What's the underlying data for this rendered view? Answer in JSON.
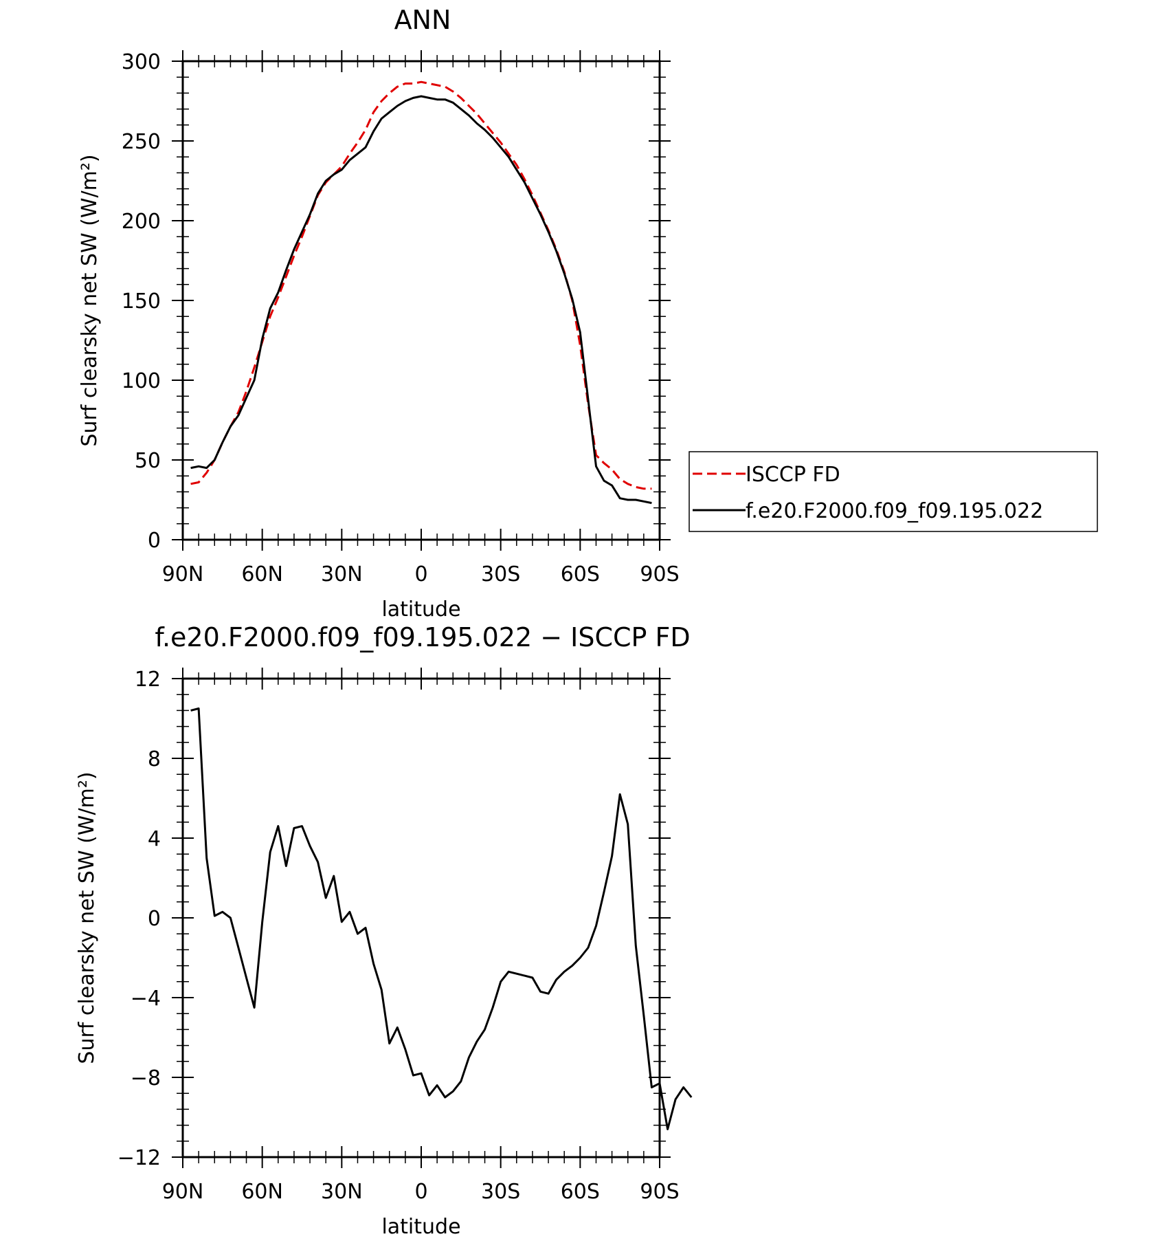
{
  "chart_data": [
    {
      "type": "line",
      "title": "ANN",
      "xlabel": "latitude",
      "ylabel": "Surf clearsky net SW (W/m²)",
      "xlim": [
        90,
        -90
      ],
      "ylim": [
        0,
        300
      ],
      "xticks": [
        {
          "value": 90,
          "label": "90N"
        },
        {
          "value": 60,
          "label": "60N"
        },
        {
          "value": 30,
          "label": "30N"
        },
        {
          "value": 0,
          "label": "0"
        },
        {
          "value": -30,
          "label": "30S"
        },
        {
          "value": -60,
          "label": "60S"
        },
        {
          "value": -90,
          "label": "90S"
        }
      ],
      "yticks": [
        0,
        50,
        100,
        150,
        200,
        250,
        300
      ],
      "legend_position": "right",
      "series": [
        {
          "name": "ISCCP FD",
          "color": "#e00000",
          "dash": true,
          "points": [
            [
              87,
              35
            ],
            [
              84,
              36
            ],
            [
              81,
              42
            ],
            [
              78,
              50
            ],
            [
              75,
              61
            ],
            [
              72,
              71
            ],
            [
              69,
              80
            ],
            [
              66,
              93
            ],
            [
              63,
              108
            ],
            [
              60,
              124
            ],
            [
              57,
              140
            ],
            [
              54,
              152
            ],
            [
              51,
              165
            ],
            [
              48,
              178
            ],
            [
              45,
              190
            ],
            [
              42,
              203
            ],
            [
              39,
              216
            ],
            [
              36,
              224
            ],
            [
              33,
              229
            ],
            [
              30,
              234
            ],
            [
              27,
              242
            ],
            [
              24,
              249
            ],
            [
              21,
              257
            ],
            [
              18,
              268
            ],
            [
              15,
              275
            ],
            [
              12,
              280
            ],
            [
              9,
              284
            ],
            [
              6,
              286
            ],
            [
              3,
              286
            ],
            [
              0,
              287
            ],
            [
              -3,
              286
            ],
            [
              -6,
              285
            ],
            [
              -9,
              284
            ],
            [
              -12,
              281
            ],
            [
              -15,
              277
            ],
            [
              -18,
              272
            ],
            [
              -21,
              267
            ],
            [
              -24,
              261
            ],
            [
              -27,
              255
            ],
            [
              -30,
              249
            ],
            [
              -33,
              242
            ],
            [
              -36,
              235
            ],
            [
              -39,
              226
            ],
            [
              -42,
              216
            ],
            [
              -45,
              205
            ],
            [
              -48,
              194
            ],
            [
              -51,
              182
            ],
            [
              -54,
              168
            ],
            [
              -57,
              150
            ],
            [
              -60,
              122
            ],
            [
              -63,
              85
            ],
            [
              -66,
              53
            ],
            [
              -69,
              48
            ],
            [
              -72,
              44
            ],
            [
              -75,
              38
            ],
            [
              -78,
              35
            ],
            [
              -81,
              33
            ],
            [
              -84,
              32
            ],
            [
              -87,
              32
            ]
          ]
        },
        {
          "name": "f.e20.F2000.f09_f09.195.022",
          "color": "#000000",
          "dash": false,
          "points": [
            [
              87,
              45
            ],
            [
              84,
              46
            ],
            [
              81,
              45
            ],
            [
              78,
              50
            ],
            [
              75,
              61
            ],
            [
              72,
              71
            ],
            [
              69,
              78
            ],
            [
              66,
              89
            ],
            [
              63,
              100
            ],
            [
              60,
              126
            ],
            [
              57,
              145
            ],
            [
              54,
              155
            ],
            [
              51,
              169
            ],
            [
              48,
              182
            ],
            [
              45,
              193
            ],
            [
              42,
              204
            ],
            [
              39,
              217
            ],
            [
              36,
              225
            ],
            [
              33,
              229
            ],
            [
              30,
              232
            ],
            [
              27,
              238
            ],
            [
              24,
              242
            ],
            [
              21,
              246
            ],
            [
              18,
              256
            ],
            [
              15,
              264
            ],
            [
              12,
              268
            ],
            [
              9,
              272
            ],
            [
              6,
              275
            ],
            [
              3,
              277
            ],
            [
              0,
              278
            ],
            [
              -3,
              277
            ],
            [
              -6,
              276
            ],
            [
              -9,
              276
            ],
            [
              -12,
              274
            ],
            [
              -15,
              270
            ],
            [
              -18,
              266
            ],
            [
              -21,
              261
            ],
            [
              -24,
              257
            ],
            [
              -27,
              252
            ],
            [
              -30,
              246
            ],
            [
              -33,
              240
            ],
            [
              -36,
              232
            ],
            [
              -39,
              224
            ],
            [
              -42,
              214
            ],
            [
              -45,
              204
            ],
            [
              -48,
              193
            ],
            [
              -51,
              181
            ],
            [
              -54,
              167
            ],
            [
              -57,
              151
            ],
            [
              -60,
              130
            ],
            [
              -63,
              88
            ],
            [
              -66,
              46
            ],
            [
              -69,
              37
            ],
            [
              -72,
              34
            ],
            [
              -75,
              26
            ],
            [
              -78,
              25
            ],
            [
              -81,
              25
            ],
            [
              -84,
              24
            ],
            [
              -87,
              23
            ]
          ]
        }
      ]
    },
    {
      "type": "line",
      "title": "f.e20.F2000.f09_f09.195.022 − ISCCP FD",
      "xlabel": "latitude",
      "ylabel": "Surf clearsky net SW (W/m²)",
      "xlim": [
        90,
        -90
      ],
      "ylim": [
        -12,
        12
      ],
      "xticks": [
        {
          "value": 90,
          "label": "90N"
        },
        {
          "value": 60,
          "label": "60N"
        },
        {
          "value": 30,
          "label": "30N"
        },
        {
          "value": 0,
          "label": "0"
        },
        {
          "value": -30,
          "label": "30S"
        },
        {
          "value": -60,
          "label": "60S"
        },
        {
          "value": -90,
          "label": "90S"
        }
      ],
      "yticks": [
        {
          "value": -12,
          "label": "−12"
        },
        {
          "value": -8,
          "label": "−8"
        },
        {
          "value": -4,
          "label": "−4"
        },
        {
          "value": 0,
          "label": "0"
        },
        {
          "value": 4,
          "label": "4"
        },
        {
          "value": 8,
          "label": "8"
        },
        {
          "value": 12,
          "label": "12"
        }
      ],
      "series": [
        {
          "color": "#000000",
          "dash": false,
          "points": [
            [
              87,
              10.4
            ],
            [
              84,
              10.5
            ],
            [
              81,
              3.0
            ],
            [
              78,
              0.1
            ],
            [
              75,
              0.3
            ],
            [
              72,
              0.0
            ],
            [
              69,
              -1.5
            ],
            [
              66,
              -3.0
            ],
            [
              63,
              -4.5
            ],
            [
              60,
              -0.2
            ],
            [
              57,
              3.3
            ],
            [
              54,
              4.6
            ],
            [
              51,
              2.6
            ],
            [
              48,
              4.5
            ],
            [
              45,
              4.6
            ],
            [
              42,
              3.6
            ],
            [
              39,
              2.8
            ],
            [
              36,
              1.0
            ],
            [
              33,
              2.1
            ],
            [
              30,
              -0.2
            ],
            [
              27,
              0.3
            ],
            [
              24,
              -0.8
            ],
            [
              21,
              -0.5
            ],
            [
              18,
              -2.3
            ],
            [
              15,
              -3.6
            ],
            [
              12,
              -6.3
            ],
            [
              9,
              -5.5
            ],
            [
              6,
              -6.6
            ],
            [
              3,
              -7.9
            ],
            [
              0,
              -7.8
            ],
            [
              -3,
              -8.9
            ],
            [
              -6,
              -8.4
            ],
            [
              -9,
              -9.0
            ],
            [
              -12,
              -8.7
            ],
            [
              -15,
              -8.2
            ],
            [
              -18,
              -7.0
            ],
            [
              -21,
              -6.2
            ],
            [
              -24,
              -5.6
            ],
            [
              -27,
              -4.5
            ],
            [
              -30,
              -3.2
            ],
            [
              -33,
              -2.7
            ],
            [
              -36,
              -2.8
            ],
            [
              -39,
              -2.9
            ],
            [
              -42,
              -3.0
            ],
            [
              -45,
              -3.7
            ],
            [
              -48,
              -3.8
            ],
            [
              -51,
              -3.1
            ],
            [
              -54,
              -2.7
            ],
            [
              -57,
              -2.4
            ],
            [
              -60,
              -2.0
            ],
            [
              -63,
              -1.5
            ],
            [
              -66,
              -0.4
            ],
            [
              -69,
              1.3
            ],
            [
              -72,
              3.1
            ],
            [
              -75,
              6.2
            ],
            [
              -78,
              4.7
            ],
            [
              -81,
              -1.4
            ],
            [
              -84,
              -4.9
            ],
            [
              -87,
              -8.5
            ],
            [
              -90,
              -8.3
            ],
            [
              -93,
              -10.6
            ],
            [
              -96,
              -9.1
            ],
            [
              -99,
              -8.5
            ],
            [
              -102,
              -9.0
            ]
          ]
        }
      ]
    }
  ]
}
